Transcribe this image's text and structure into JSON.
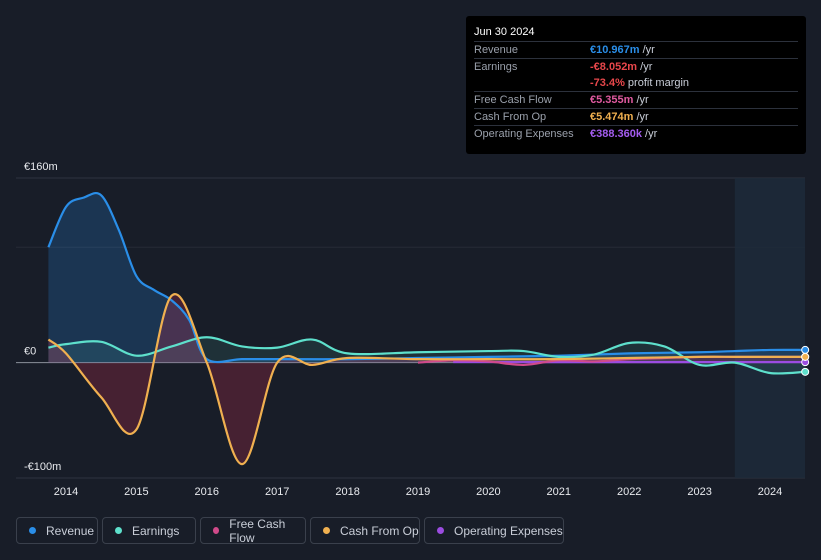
{
  "tooltip": {
    "date": "Jun 30 2024",
    "rows": [
      {
        "label": "Revenue",
        "value": "€10.967m",
        "unit": " /yr",
        "color": "#2a8ee8"
      },
      {
        "label": "Earnings",
        "value": "-€8.052m",
        "unit": " /yr",
        "color": "#e8474b"
      },
      {
        "label": "",
        "value": "-73.4%",
        "unit": " profit margin",
        "color": "#e8474b"
      },
      {
        "label": "Free Cash Flow",
        "value": "€5.355m",
        "unit": " /yr",
        "color": "#e05aa0"
      },
      {
        "label": "Cash From Op",
        "value": "€5.474m",
        "unit": " /yr",
        "color": "#f0b050"
      },
      {
        "label": "Operating Expenses",
        "value": "€388.360k",
        "unit": " /yr",
        "color": "#a45cf0"
      }
    ]
  },
  "legend": [
    {
      "label": "Revenue",
      "color": "#2a8ee8"
    },
    {
      "label": "Earnings",
      "color": "#5ee0cc"
    },
    {
      "label": "Free Cash Flow",
      "color": "#d04a8a"
    },
    {
      "label": "Cash From Op",
      "color": "#f0b050"
    },
    {
      "label": "Operating Expenses",
      "color": "#9b4ce0"
    }
  ],
  "chart_data": {
    "type": "line",
    "ylim": [
      -100,
      160
    ],
    "y_tick_labels": [
      "€160m",
      "€0",
      "-€100m"
    ],
    "x_tick_labels": [
      "2014",
      "2015",
      "2016",
      "2017",
      "2018",
      "2019",
      "2020",
      "2021",
      "2022",
      "2023",
      "2024"
    ],
    "series": [
      {
        "name": "Revenue",
        "color": "#2a8ee8",
        "x": [
          2013.75,
          2014.0,
          2014.25,
          2014.5,
          2014.75,
          2015.0,
          2015.25,
          2015.5,
          2015.75,
          2016.0,
          2016.5,
          2017.0,
          2018.0,
          2019.0,
          2020.0,
          2021.0,
          2022.0,
          2023.0,
          2023.5,
          2024.0,
          2024.5
        ],
        "y": [
          100,
          135,
          143,
          145,
          115,
          75,
          63,
          54,
          37,
          3,
          3,
          3,
          3,
          4,
          5,
          6,
          8,
          9,
          10,
          11,
          11
        ]
      },
      {
        "name": "Earnings",
        "color": "#5ee0cc",
        "x": [
          2013.75,
          2014.0,
          2014.5,
          2015.0,
          2015.5,
          2016.0,
          2016.5,
          2017.0,
          2017.5,
          2018.0,
          2019.0,
          2020.0,
          2020.5,
          2021.0,
          2021.5,
          2022.0,
          2022.5,
          2023.0,
          2023.5,
          2024.0,
          2024.5
        ],
        "y": [
          13,
          16,
          18,
          6,
          14,
          22,
          14,
          13,
          20,
          8,
          9,
          10,
          10,
          5,
          7,
          17,
          14,
          -2,
          0,
          -9,
          -8
        ]
      },
      {
        "name": "Free Cash Flow",
        "color": "#d04a8a",
        "x": [
          2019.0,
          2019.5,
          2020.0,
          2020.5,
          2021.0,
          2021.5,
          2022.0,
          2022.5,
          2023.0,
          2023.5,
          2024.0,
          2024.5
        ],
        "y": [
          0,
          2,
          1,
          -2,
          2,
          1,
          3,
          4,
          5,
          5,
          5,
          5
        ]
      },
      {
        "name": "Cash From Op",
        "color": "#f0b050",
        "x": [
          2013.75,
          2014.0,
          2014.5,
          2015.0,
          2015.5,
          2016.0,
          2016.5,
          2017.0,
          2017.5,
          2018.0,
          2019.0,
          2020.0,
          2021.0,
          2022.0,
          2023.0,
          2023.5,
          2024.0,
          2024.5
        ],
        "y": [
          20,
          8,
          -30,
          -58,
          58,
          0,
          -88,
          0,
          -2,
          4,
          3,
          3,
          3,
          4,
          5,
          5,
          5,
          5
        ]
      },
      {
        "name": "Operating Expenses",
        "color": "#9b4ce0",
        "x": [
          2019.5,
          2020.0,
          2021.0,
          2022.0,
          2023.0,
          2024.0,
          2024.5
        ],
        "y": [
          0.5,
          0.5,
          0.4,
          0.4,
          0.4,
          0.4,
          0.4
        ]
      }
    ]
  }
}
